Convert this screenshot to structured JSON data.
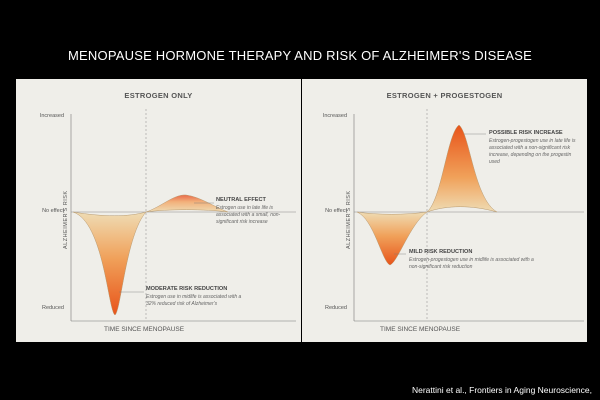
{
  "title": "MENOPAUSE HORMONE THERAPY AND RISK OF ALZHEIMER'S DISEASE",
  "citation": "Nerattini et al., Frontiers in Aging Neuroscience,",
  "axis": {
    "y_top": "Increased",
    "y_mid": "No effect",
    "y_bottom": "Reduced",
    "y_title": "ALZHEIMER'S RISK",
    "x_title": "TIME SINCE MENOPAUSE"
  },
  "colors": {
    "background": "#000000",
    "panel": "#efeee9",
    "peak": "#e8541a",
    "mid": "#f0a15a",
    "base": "#efdcb4"
  },
  "panels": [
    {
      "title": "ESTROGEN ONLY",
      "annotations": [
        {
          "heading": "NEUTRAL EFFECT",
          "description": "Estrogen use in late life is associated with a small, non-significant risk increase"
        },
        {
          "heading": "MODERATE RISK REDUCTION",
          "description": "Estrogen use in midlife is associated with a 32% reduced risk of Alzheimer's"
        }
      ]
    },
    {
      "title": "ESTROGEN + PROGESTOGEN",
      "annotations": [
        {
          "heading": "POSSIBLE  RISK INCREASE",
          "description": "Estrogen-progestogen use in late life is associated with a non-significant risk increase, depending on the progestin used"
        },
        {
          "heading": "MILD RISK REDUCTION",
          "description": "Estrogen-progestogen use in midlife is associated with a non-significant risk reduction"
        }
      ]
    }
  ]
}
